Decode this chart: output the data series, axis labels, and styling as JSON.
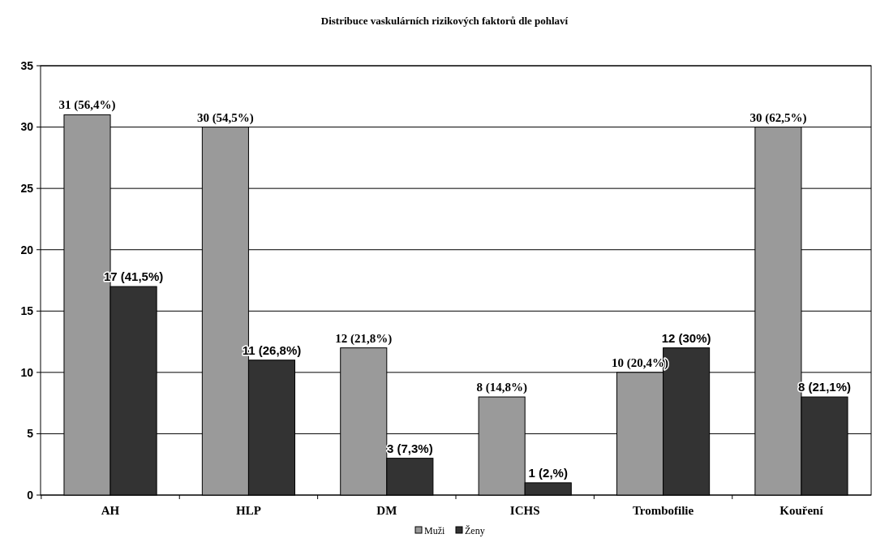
{
  "chart_data": {
    "type": "bar",
    "title": "Distribuce vaskulárních rizikových faktorů dle pohlaví",
    "categories": [
      "AH",
      "HLP",
      "DM",
      "ICHS",
      "Trombofilie",
      "Kouření"
    ],
    "series": [
      {
        "name": "Muži",
        "color": "#9a9a9a",
        "values": [
          31,
          30,
          12,
          8,
          10,
          30
        ],
        "value_labels": [
          "31 (56,4%)",
          "30 (54,5%)",
          "12 (21,8%)",
          "8 (14,8%)",
          "10 (20,4%)",
          "30 (62,5%)"
        ]
      },
      {
        "name": "Ženy",
        "color": "#333333",
        "values": [
          17,
          11,
          3,
          1,
          12,
          8
        ],
        "value_labels": [
          "17 (41,5%)",
          "11 (26,8%)",
          "3 (7,3%)",
          "1 (2,%)",
          "12 (30%)",
          "8 (21,1%)"
        ]
      }
    ],
    "ylim": [
      0,
      35
    ],
    "yticks": [
      0,
      5,
      10,
      15,
      20,
      25,
      30,
      35
    ],
    "grid": "y",
    "legend": "bottom"
  }
}
